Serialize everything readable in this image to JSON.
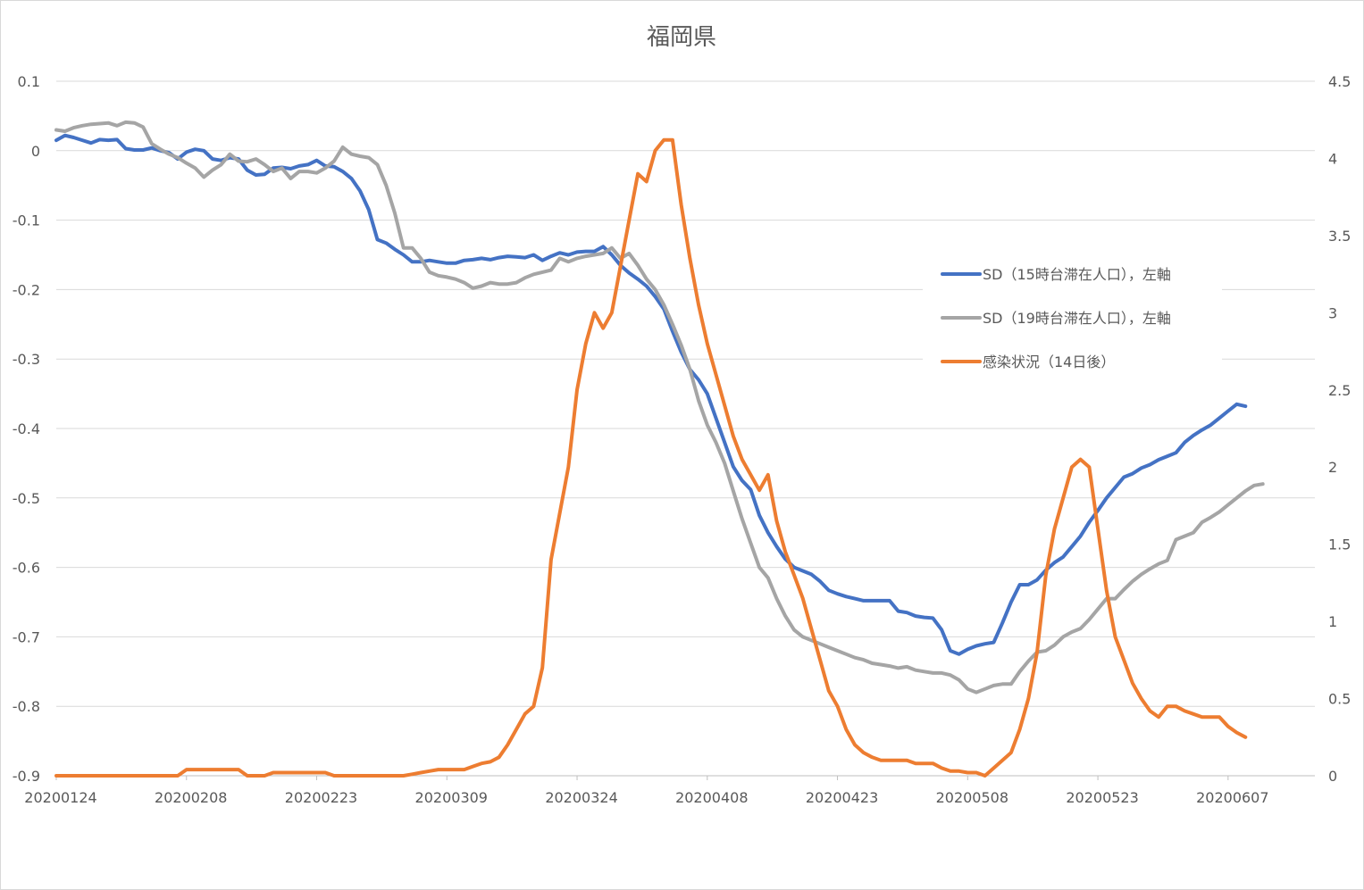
{
  "chart_data": {
    "type": "line",
    "title": "福岡県",
    "x_tick_labels": [
      "20200124",
      "20200208",
      "20200223",
      "20200309",
      "20200324",
      "20200408",
      "20200423",
      "20200508",
      "20200523",
      "20200607"
    ],
    "x_tick_index": [
      0,
      15,
      30,
      45,
      60,
      75,
      90,
      105,
      120,
      135
    ],
    "y_left": {
      "ticks": [
        0.1,
        0,
        -0.1,
        -0.2,
        -0.3,
        -0.4,
        -0.5,
        -0.6,
        -0.7,
        -0.8,
        -0.9
      ],
      "labels": [
        "0.1",
        "0",
        "-0.1",
        "-0.2",
        "-0.3",
        "-0.4",
        "-0.5",
        "-0.6",
        "-0.7",
        "-0.8",
        "-0.9"
      ],
      "range": [
        -0.9,
        0.1
      ]
    },
    "y_right": {
      "ticks": [
        4.5,
        4,
        3.5,
        3,
        2.5,
        2,
        1.5,
        1,
        0.5,
        0
      ],
      "labels": [
        "4.5",
        "4",
        "3.5",
        "3",
        "2.5",
        "2",
        "1.5",
        "1",
        "0.5",
        "0"
      ],
      "range": [
        0,
        4.5
      ]
    },
    "grid": true,
    "legend_position": "right",
    "series": [
      {
        "name": "SD（15時台滞在人口），左軸",
        "axis": "left",
        "color": "#4472C4",
        "values": [
          0.015,
          0.022,
          0.019,
          0.015,
          0.011,
          0.016,
          0.015,
          0.016,
          0.003,
          0.001,
          0.001,
          0.004,
          0.0,
          -0.003,
          -0.012,
          -0.002,
          0.002,
          0.0,
          -0.012,
          -0.014,
          -0.01,
          -0.012,
          -0.028,
          -0.035,
          -0.034,
          -0.025,
          -0.024,
          -0.026,
          -0.022,
          -0.02,
          -0.014,
          -0.022,
          -0.023,
          -0.03,
          -0.04,
          -0.058,
          -0.085,
          -0.128,
          -0.133,
          -0.142,
          -0.15,
          -0.16,
          -0.16,
          -0.158,
          -0.16,
          -0.162,
          -0.162,
          -0.158,
          -0.157,
          -0.155,
          -0.157,
          -0.154,
          -0.152,
          -0.153,
          -0.154,
          -0.15,
          -0.158,
          -0.152,
          -0.147,
          -0.15,
          -0.146,
          -0.145,
          -0.145,
          -0.138,
          -0.15,
          -0.165,
          -0.176,
          -0.185,
          -0.195,
          -0.21,
          -0.228,
          -0.26,
          -0.29,
          -0.315,
          -0.33,
          -0.35,
          -0.385,
          -0.42,
          -0.455,
          -0.475,
          -0.488,
          -0.525,
          -0.55,
          -0.57,
          -0.588,
          -0.6,
          -0.605,
          -0.61,
          -0.62,
          -0.633,
          -0.638,
          -0.642,
          -0.645,
          -0.648,
          -0.648,
          -0.648,
          -0.648,
          -0.663,
          -0.665,
          -0.67,
          -0.672,
          -0.673,
          -0.69,
          -0.72,
          -0.725,
          -0.718,
          -0.713,
          -0.71,
          -0.708,
          -0.68,
          -0.65,
          -0.625,
          -0.625,
          -0.618,
          -0.604,
          -0.593,
          -0.585,
          -0.57,
          -0.555,
          -0.535,
          -0.518,
          -0.5,
          -0.485,
          -0.47,
          -0.465,
          -0.457,
          -0.452,
          -0.445,
          -0.44,
          -0.435,
          -0.42,
          -0.41,
          -0.402,
          -0.395,
          -0.385,
          -0.375,
          -0.365,
          -0.368
        ]
      },
      {
        "name": "SD（19時台滞在人口），左軸",
        "axis": "left",
        "color": "#A5A5A5",
        "values": [
          0.03,
          0.028,
          0.033,
          0.036,
          0.038,
          0.039,
          0.04,
          0.036,
          0.041,
          0.04,
          0.034,
          0.01,
          0.002,
          -0.005,
          -0.01,
          -0.018,
          -0.025,
          -0.038,
          -0.028,
          -0.02,
          -0.005,
          -0.015,
          -0.016,
          -0.012,
          -0.02,
          -0.03,
          -0.025,
          -0.04,
          -0.03,
          -0.03,
          -0.032,
          -0.025,
          -0.015,
          0.005,
          -0.005,
          -0.008,
          -0.01,
          -0.02,
          -0.05,
          -0.09,
          -0.14,
          -0.14,
          -0.155,
          -0.175,
          -0.18,
          -0.182,
          -0.185,
          -0.19,
          -0.198,
          -0.195,
          -0.19,
          -0.192,
          -0.192,
          -0.19,
          -0.183,
          -0.178,
          -0.175,
          -0.172,
          -0.155,
          -0.16,
          -0.155,
          -0.152,
          -0.15,
          -0.148,
          -0.14,
          -0.155,
          -0.148,
          -0.165,
          -0.185,
          -0.2,
          -0.222,
          -0.25,
          -0.28,
          -0.315,
          -0.36,
          -0.395,
          -0.42,
          -0.45,
          -0.49,
          -0.53,
          -0.565,
          -0.6,
          -0.615,
          -0.645,
          -0.67,
          -0.69,
          -0.7,
          -0.705,
          -0.71,
          -0.715,
          -0.72,
          -0.725,
          -0.73,
          -0.733,
          -0.738,
          -0.74,
          -0.742,
          -0.745,
          -0.743,
          -0.748,
          -0.75,
          -0.752,
          -0.752,
          -0.755,
          -0.762,
          -0.775,
          -0.78,
          -0.775,
          -0.77,
          -0.768,
          -0.768,
          -0.75,
          -0.735,
          -0.722,
          -0.72,
          -0.712,
          -0.7,
          -0.693,
          -0.688,
          -0.675,
          -0.66,
          -0.645,
          -0.645,
          -0.632,
          -0.62,
          -0.61,
          -0.602,
          -0.595,
          -0.59,
          -0.56,
          -0.555,
          -0.55,
          -0.535,
          -0.528,
          -0.52,
          -0.51,
          -0.5,
          -0.49,
          -0.482,
          -0.48
        ]
      },
      {
        "name": "感染状況（14日後）",
        "axis": "right",
        "color": "#ED7D31",
        "values": [
          0,
          0,
          0,
          0,
          0,
          0,
          0,
          0,
          0,
          0,
          0,
          0,
          0,
          0,
          0,
          0.04,
          0.04,
          0.04,
          0.04,
          0.04,
          0.04,
          0.04,
          0,
          0,
          0,
          0.02,
          0.02,
          0.02,
          0.02,
          0.02,
          0.02,
          0.02,
          0,
          0,
          0,
          0,
          0,
          0,
          0,
          0,
          0,
          0.01,
          0.02,
          0.03,
          0.04,
          0.04,
          0.04,
          0.04,
          0.06,
          0.08,
          0.09,
          0.12,
          0.2,
          0.3,
          0.4,
          0.45,
          0.7,
          1.4,
          1.7,
          2.0,
          2.5,
          2.8,
          3.0,
          2.9,
          3.0,
          3.3,
          3.6,
          3.9,
          3.85,
          4.05,
          4.12,
          4.12,
          3.7,
          3.35,
          3.05,
          2.8,
          2.6,
          2.4,
          2.2,
          2.05,
          1.95,
          1.85,
          1.95,
          1.65,
          1.45,
          1.3,
          1.15,
          0.95,
          0.75,
          0.55,
          0.45,
          0.3,
          0.2,
          0.15,
          0.12,
          0.1,
          0.1,
          0.1,
          0.1,
          0.08,
          0.08,
          0.08,
          0.05,
          0.03,
          0.03,
          0.02,
          0.02,
          0,
          0.05,
          0.1,
          0.15,
          0.3,
          0.5,
          0.8,
          1.3,
          1.6,
          1.8,
          2.0,
          2.05,
          2.0,
          1.6,
          1.2,
          0.9,
          0.75,
          0.6,
          0.5,
          0.42,
          0.38,
          0.45,
          0.45,
          0.42,
          0.4,
          0.38,
          0.38,
          0.38,
          0.32,
          0.28,
          0.25
        ]
      }
    ]
  }
}
